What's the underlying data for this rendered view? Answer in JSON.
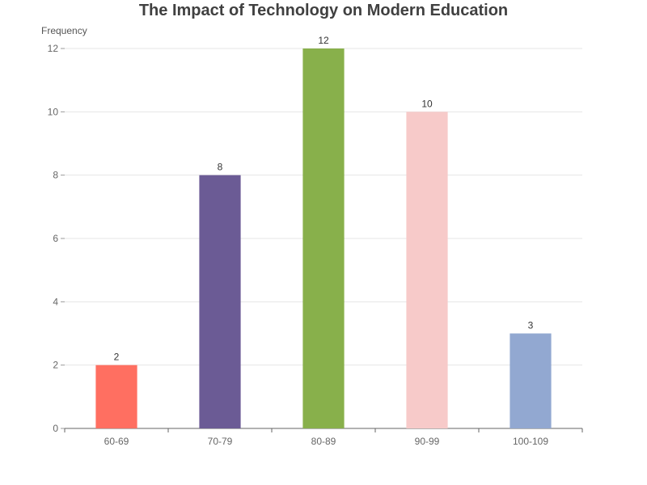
{
  "chart_data": {
    "type": "bar",
    "title": "The Impact of Technology on Modern Education",
    "xlabel": "",
    "ylabel": "Frequency",
    "categories": [
      "60-69",
      "70-79",
      "80-89",
      "90-99",
      "100-109"
    ],
    "values": [
      2,
      8,
      12,
      10,
      3
    ],
    "colors": [
      "#ff6f61",
      "#6b5b95",
      "#88b04b",
      "#f7cac9",
      "#92a8d1"
    ],
    "ylim": [
      0,
      12
    ],
    "yticks": [
      0,
      2,
      4,
      6,
      8,
      10,
      12
    ],
    "grid": true,
    "data_labels": true
  }
}
